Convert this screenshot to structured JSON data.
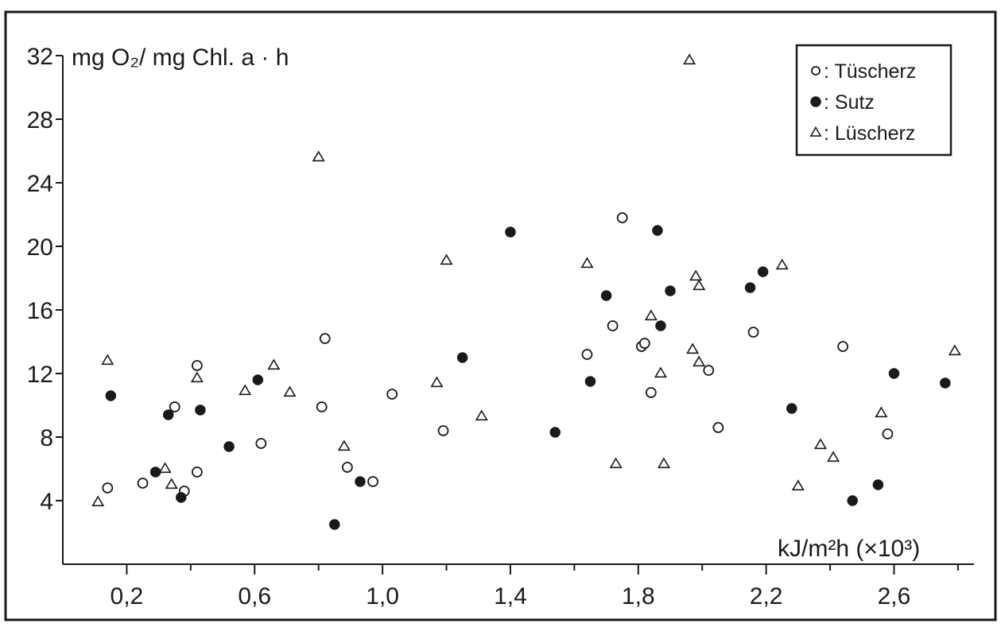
{
  "chart_data": {
    "type": "scatter",
    "ylabel": "mg O₂/ mg Chl. a · h",
    "xlabel": "kJ/m²h  (×10³)",
    "xlim": [
      0.0,
      2.85
    ],
    "ylim": [
      0,
      32
    ],
    "x_tick_labels": [
      "0,2",
      "0,6",
      "1,0",
      "1,4",
      "1,8",
      "2,2",
      "2,6"
    ],
    "x_tick_values": [
      0.2,
      0.6,
      1.0,
      1.4,
      1.8,
      2.2,
      2.6
    ],
    "x_minor_ticks": [
      0.4,
      0.8,
      1.2,
      1.6,
      2.0,
      2.4,
      2.8
    ],
    "y_tick_labels": [
      "4",
      "8",
      "12",
      "16",
      "20",
      "24",
      "28",
      "32"
    ],
    "y_tick_values": [
      4,
      8,
      12,
      16,
      20,
      24,
      28,
      32
    ],
    "grid": false,
    "legend": {
      "placement": "top-right"
    },
    "series": [
      {
        "name": "Tüscherz",
        "legend_label": "○: Tüscherz",
        "marker": "open-circle",
        "points": [
          [
            0.14,
            4.8
          ],
          [
            0.25,
            5.1
          ],
          [
            0.35,
            9.9
          ],
          [
            0.38,
            4.6
          ],
          [
            0.42,
            12.5
          ],
          [
            0.42,
            5.8
          ],
          [
            0.62,
            7.6
          ],
          [
            0.81,
            9.9
          ],
          [
            0.82,
            14.2
          ],
          [
            0.89,
            6.1
          ],
          [
            0.97,
            5.2
          ],
          [
            1.03,
            10.7
          ],
          [
            1.19,
            8.4
          ],
          [
            1.64,
            13.2
          ],
          [
            1.72,
            15.0
          ],
          [
            1.75,
            21.8
          ],
          [
            1.81,
            13.7
          ],
          [
            1.82,
            13.9
          ],
          [
            1.84,
            10.8
          ],
          [
            2.02,
            12.2
          ],
          [
            2.05,
            8.6
          ],
          [
            2.16,
            14.6
          ],
          [
            2.44,
            13.7
          ],
          [
            2.58,
            8.2
          ]
        ]
      },
      {
        "name": "Sutz",
        "legend_label": "●: Sutz",
        "marker": "filled-circle",
        "points": [
          [
            0.15,
            10.6
          ],
          [
            0.29,
            5.8
          ],
          [
            0.33,
            9.4
          ],
          [
            0.37,
            4.2
          ],
          [
            0.43,
            9.7
          ],
          [
            0.52,
            7.4
          ],
          [
            0.61,
            11.6
          ],
          [
            0.85,
            2.5
          ],
          [
            0.93,
            5.2
          ],
          [
            1.25,
            13.0
          ],
          [
            1.4,
            20.9
          ],
          [
            1.54,
            8.3
          ],
          [
            1.65,
            11.5
          ],
          [
            1.7,
            16.9
          ],
          [
            1.86,
            21.0
          ],
          [
            1.87,
            15.0
          ],
          [
            1.9,
            17.2
          ],
          [
            2.15,
            17.4
          ],
          [
            2.19,
            18.4
          ],
          [
            2.28,
            9.8
          ],
          [
            2.47,
            4.0
          ],
          [
            2.55,
            5.0
          ],
          [
            2.6,
            12.0
          ],
          [
            2.76,
            11.4
          ]
        ]
      },
      {
        "name": "Lüscherz",
        "legend_label": "△: Lüscherz",
        "marker": "open-triangle",
        "points": [
          [
            0.11,
            3.9
          ],
          [
            0.14,
            12.8
          ],
          [
            0.32,
            6.0
          ],
          [
            0.34,
            5.0
          ],
          [
            0.42,
            11.7
          ],
          [
            0.57,
            10.9
          ],
          [
            0.66,
            12.5
          ],
          [
            0.71,
            10.8
          ],
          [
            0.8,
            25.6
          ],
          [
            0.88,
            7.4
          ],
          [
            1.17,
            11.4
          ],
          [
            1.2,
            19.1
          ],
          [
            1.31,
            9.3
          ],
          [
            1.64,
            18.9
          ],
          [
            1.73,
            6.3
          ],
          [
            1.84,
            15.6
          ],
          [
            1.87,
            12.0
          ],
          [
            1.88,
            6.3
          ],
          [
            1.96,
            31.7
          ],
          [
            1.97,
            13.5
          ],
          [
            1.98,
            18.1
          ],
          [
            1.99,
            17.5
          ],
          [
            1.99,
            12.7
          ],
          [
            2.25,
            18.8
          ],
          [
            2.3,
            4.9
          ],
          [
            2.37,
            7.5
          ],
          [
            2.41,
            6.7
          ],
          [
            2.56,
            9.5
          ],
          [
            2.79,
            13.4
          ]
        ]
      }
    ]
  }
}
